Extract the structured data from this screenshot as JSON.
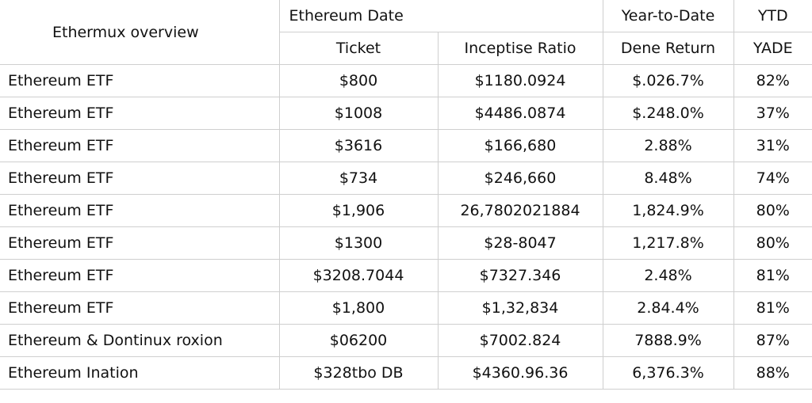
{
  "header": {
    "title": "Ethermux overview",
    "group_left": "Ethereum Date",
    "group_mid": "Year-to-Date",
    "group_right": "YTD",
    "columns": [
      "Ticket",
      "Inceptise Ratio",
      "Dene Return",
      "YADE"
    ]
  },
  "table": {
    "rows": [
      [
        "Ethereum ETF",
        "$800",
        "$1180.0924",
        "$.026.7%",
        "82%"
      ],
      [
        "Ethereum ETF",
        "$1008",
        "$4486.0874",
        "$.248.0%",
        "37%"
      ],
      [
        "Ethereum ETF",
        "$3616",
        "$166,680",
        "2.88%",
        "31%"
      ],
      [
        "Ethereum ETF",
        "$734",
        "$246,660",
        "8.48%",
        "74%"
      ],
      [
        "Ethereum ETF",
        "$1,906",
        "26,7802021884",
        "1,824.9%",
        "80%"
      ],
      [
        "Ethereum ETF",
        "$1300",
        "$28-8047",
        "1,217.8%",
        "80%"
      ],
      [
        "Ethereum ETF",
        "$3208.7044",
        "$7327.346",
        "2.48%",
        "81%"
      ],
      [
        "Ethereum ETF",
        "$1,800",
        "$1,32,834",
        "2.84.4%",
        "81%"
      ],
      [
        "Ethereum & Dontinux roxion",
        "$06200",
        "$7002.824",
        "7888.9%",
        "87%"
      ],
      [
        "Ethereum Ination",
        "$328tbo DB",
        "$4360.96.36",
        "6,376.3%",
        "88%"
      ]
    ]
  }
}
